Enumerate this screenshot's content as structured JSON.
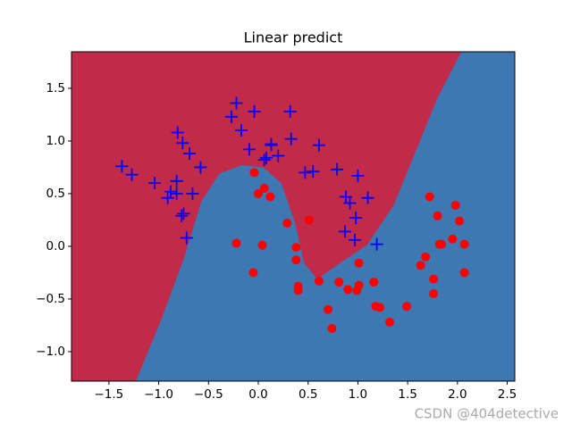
{
  "chart_data": {
    "type": "scatter",
    "title": "Linear predict",
    "xlim": [
      -1.876,
      2.576
    ],
    "ylim": [
      -1.28,
      1.847
    ],
    "xticks": [
      {
        "value": -1.5,
        "label": "−1.5"
      },
      {
        "value": -1.0,
        "label": "−1.0"
      },
      {
        "value": -0.5,
        "label": "−0.5"
      },
      {
        "value": 0.0,
        "label": "0.0"
      },
      {
        "value": 0.5,
        "label": "0.5"
      },
      {
        "value": 1.0,
        "label": "1.0"
      },
      {
        "value": 1.5,
        "label": "1.5"
      },
      {
        "value": 2.0,
        "label": "2.0"
      },
      {
        "value": 2.5,
        "label": "2.5"
      }
    ],
    "yticks": [
      {
        "value": -1.0,
        "label": "−1.0"
      },
      {
        "value": -0.5,
        "label": "−0.5"
      },
      {
        "value": 0.0,
        "label": "0.0"
      },
      {
        "value": 0.5,
        "label": "0.5"
      },
      {
        "value": 1.0,
        "label": "1.0"
      },
      {
        "value": 1.5,
        "label": "1.5"
      }
    ],
    "region_colors": [
      "#c22a4a",
      "#3e78b3"
    ],
    "boundary": {
      "x": [
        -1.23,
        -0.98,
        -0.75,
        -0.57,
        -0.39,
        -0.17,
        0.05,
        0.23,
        0.37,
        0.46,
        0.59,
        0.82,
        1.09,
        1.36,
        1.58,
        1.8,
        2.04
      ],
      "y": [
        -1.28,
        -0.71,
        -0.12,
        0.43,
        0.69,
        0.77,
        0.75,
        0.6,
        0.22,
        -0.16,
        -0.31,
        -0.16,
        0.01,
        0.39,
        0.9,
        1.41,
        1.847
      ]
    },
    "series": [
      {
        "color": "blue",
        "marker": "plus",
        "x": [
          -1.37,
          -1.27,
          -1.04,
          -0.91,
          -0.88,
          -0.81,
          -0.76,
          -0.69,
          -0.82,
          -0.82,
          -0.66,
          -0.77,
          -0.75,
          -0.72,
          -0.58,
          -0.27,
          -0.22,
          -0.17,
          -0.09,
          -0.04,
          0.08,
          0.06,
          0.13,
          0.13,
          0.2,
          0.32,
          0.33,
          0.47,
          0.55,
          0.61,
          0.79,
          0.88,
          0.92,
          1.0,
          0.98,
          0.87,
          0.97,
          1.1,
          1.19
        ],
        "y": [
          0.76,
          0.68,
          0.6,
          0.46,
          0.52,
          1.08,
          0.98,
          0.88,
          0.62,
          0.5,
          0.5,
          0.29,
          0.31,
          0.08,
          0.75,
          1.23,
          1.36,
          1.1,
          0.92,
          1.28,
          0.84,
          0.82,
          0.97,
          0.96,
          0.86,
          1.28,
          1.02,
          0.7,
          0.71,
          0.96,
          0.73,
          0.47,
          0.41,
          0.67,
          0.27,
          0.14,
          0.06,
          0.46,
          0.02
        ]
      },
      {
        "color": "red",
        "marker": "circle",
        "x": [
          -0.04,
          0.0,
          0.06,
          0.12,
          -0.22,
          0.04,
          -0.05,
          0.29,
          0.51,
          0.38,
          0.38,
          0.4,
          0.4,
          0.61,
          0.7,
          0.74,
          0.81,
          0.9,
          0.99,
          1.01,
          1.01,
          1.16,
          1.18,
          1.22,
          1.32,
          1.49,
          1.63,
          1.68,
          1.72,
          1.8,
          1.82,
          1.84,
          1.76,
          1.76,
          1.98,
          2.02,
          1.95,
          2.07,
          2.07
        ],
        "y": [
          0.7,
          0.5,
          0.55,
          0.47,
          0.03,
          0.01,
          -0.25,
          0.22,
          0.25,
          -0.01,
          -0.13,
          -0.38,
          -0.42,
          -0.33,
          -0.6,
          -0.78,
          -0.34,
          -0.41,
          -0.42,
          -0.16,
          -0.37,
          -0.34,
          -0.57,
          -0.58,
          -0.72,
          -0.57,
          -0.18,
          -0.1,
          0.47,
          0.29,
          0.02,
          0.02,
          -0.31,
          -0.45,
          0.39,
          0.24,
          0.07,
          0.02,
          -0.25
        ]
      }
    ],
    "watermark": "CSDN @404detective"
  }
}
